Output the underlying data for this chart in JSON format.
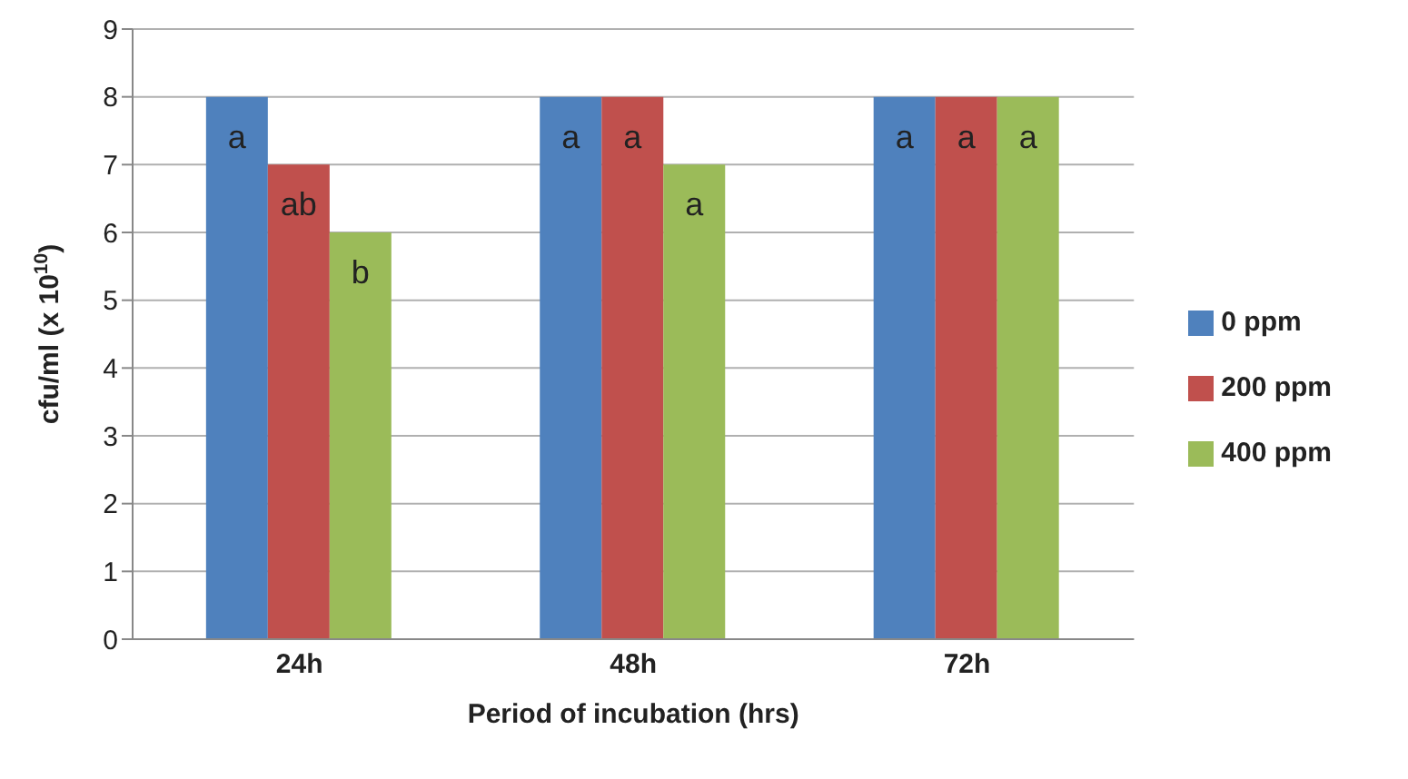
{
  "chart_data": {
    "type": "bar",
    "xlabel": "Period of incubation (hrs)",
    "ylabel": "cfu/ml (x 10$^{10}$)",
    "categories": [
      "24h",
      "48h",
      "72h"
    ],
    "series": [
      {
        "name": "0 ppm",
        "color": "#4f81bd",
        "values": [
          8,
          8,
          8
        ],
        "value_labels": [
          "a",
          "a",
          "a"
        ]
      },
      {
        "name": "200 ppm",
        "color": "#c0504d",
        "values": [
          7,
          8,
          8
        ],
        "value_labels": [
          "ab",
          "a",
          "a"
        ]
      },
      {
        "name": "400 ppm",
        "color": "#9bbb59",
        "values": [
          6,
          7,
          8
        ],
        "value_labels": [
          "b",
          "a",
          "a"
        ]
      }
    ],
    "ylim": [
      0,
      9
    ],
    "yticks": [
      0,
      1,
      2,
      3,
      4,
      5,
      6,
      7,
      8,
      9
    ],
    "grid": "y",
    "legend": "right"
  }
}
